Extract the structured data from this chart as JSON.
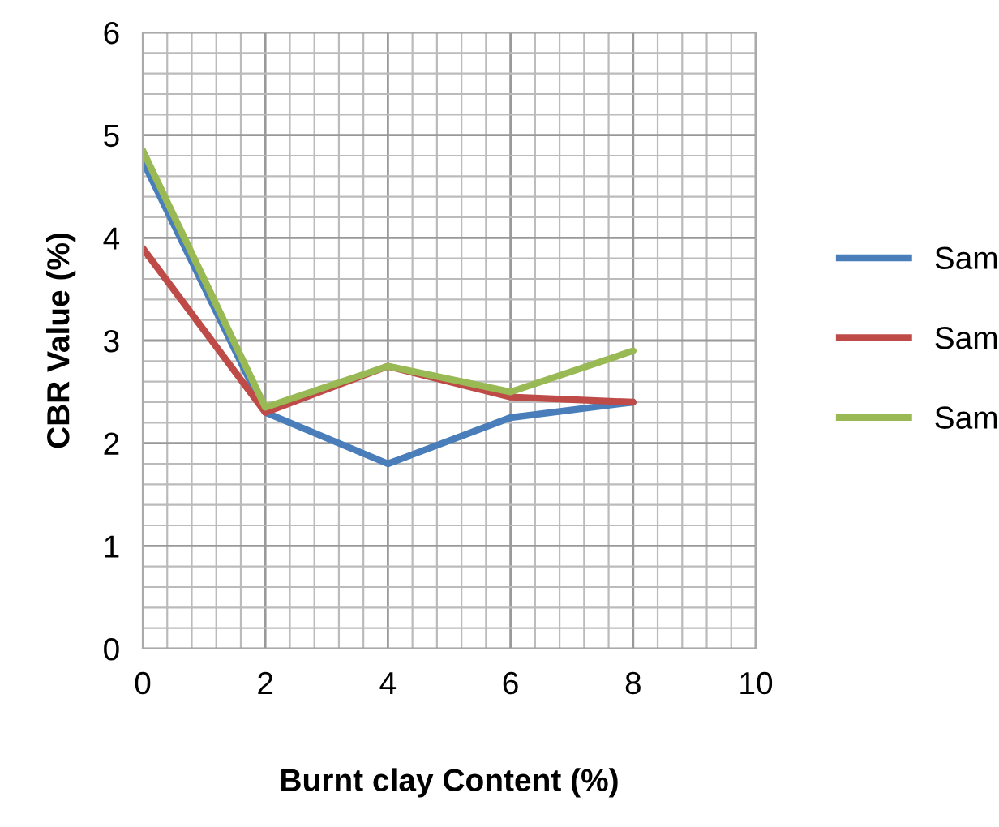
{
  "chart_data": {
    "type": "line",
    "xlabel": "Burnt clay Content (%)",
    "ylabel": "CBR Value (%)",
    "x": [
      0,
      2,
      4,
      6,
      8
    ],
    "series": [
      {
        "name": "Sam",
        "color": "#4a7ebb",
        "values": [
          4.75,
          2.3,
          1.8,
          2.25,
          2.4
        ]
      },
      {
        "name": "Sam",
        "color": "#be4b48",
        "values": [
          3.9,
          2.3,
          2.75,
          2.45,
          2.4
        ]
      },
      {
        "name": "Sam",
        "color": "#98b954",
        "values": [
          4.85,
          2.35,
          2.75,
          2.5,
          2.9
        ]
      }
    ],
    "xlim": [
      0,
      10
    ],
    "xticks": [
      0,
      2,
      4,
      6,
      8,
      10
    ],
    "ylim": [
      0,
      6
    ],
    "yticks": [
      0,
      1,
      2,
      3,
      4,
      5,
      6
    ],
    "grid": true,
    "legend": "right",
    "marker": "none",
    "line_style": "solid"
  }
}
